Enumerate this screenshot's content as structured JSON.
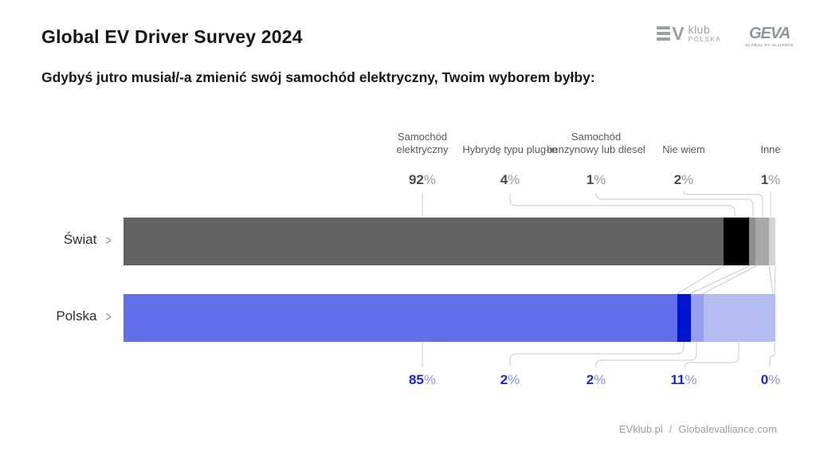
{
  "header": {
    "title": "Global EV Driver Survey 2024",
    "question": "Gdybyś jutro musiał/-a zmienić swój samochód elektryczny, Twoim wyborem byłby:",
    "logos": {
      "evklub": {
        "klub": "klub",
        "polska": "POLSKA",
        "v": "V"
      },
      "geva": {
        "name": "GEVA",
        "tagline": "GLOBAL EV ALLIANCE"
      }
    }
  },
  "chart_data": {
    "type": "bar",
    "orientation": "horizontal",
    "stacked": true,
    "unit": "%",
    "percent_sign": "%",
    "xlim": [
      0,
      100
    ],
    "grid": false,
    "categories": [
      "Samochód elektryczny",
      "Hybrydę typu plug-in",
      "Samochód benzynowy lub diesel",
      "Nie wiem",
      "Inne"
    ],
    "series": [
      {
        "name": "Świat",
        "values": [
          92,
          4,
          1,
          2,
          1
        ],
        "colors": [
          "#636363",
          "#000000",
          "#8f8f8f",
          "#a9a9a9",
          "#d4d4d4"
        ]
      },
      {
        "name": "Polska",
        "values": [
          85,
          2,
          2,
          11,
          0
        ],
        "colors": [
          "#6170e8",
          "#0014cd",
          "#98a1ed",
          "#b5bcf1",
          "#c9cef4"
        ]
      }
    ],
    "value_label_colors": {
      "swiat": "#4b4b4b",
      "polska": "#1b24d2"
    }
  },
  "footer": {
    "site_left": "EVklub.pl",
    "separator": "/",
    "site_right": "Globalevalliance.com"
  }
}
